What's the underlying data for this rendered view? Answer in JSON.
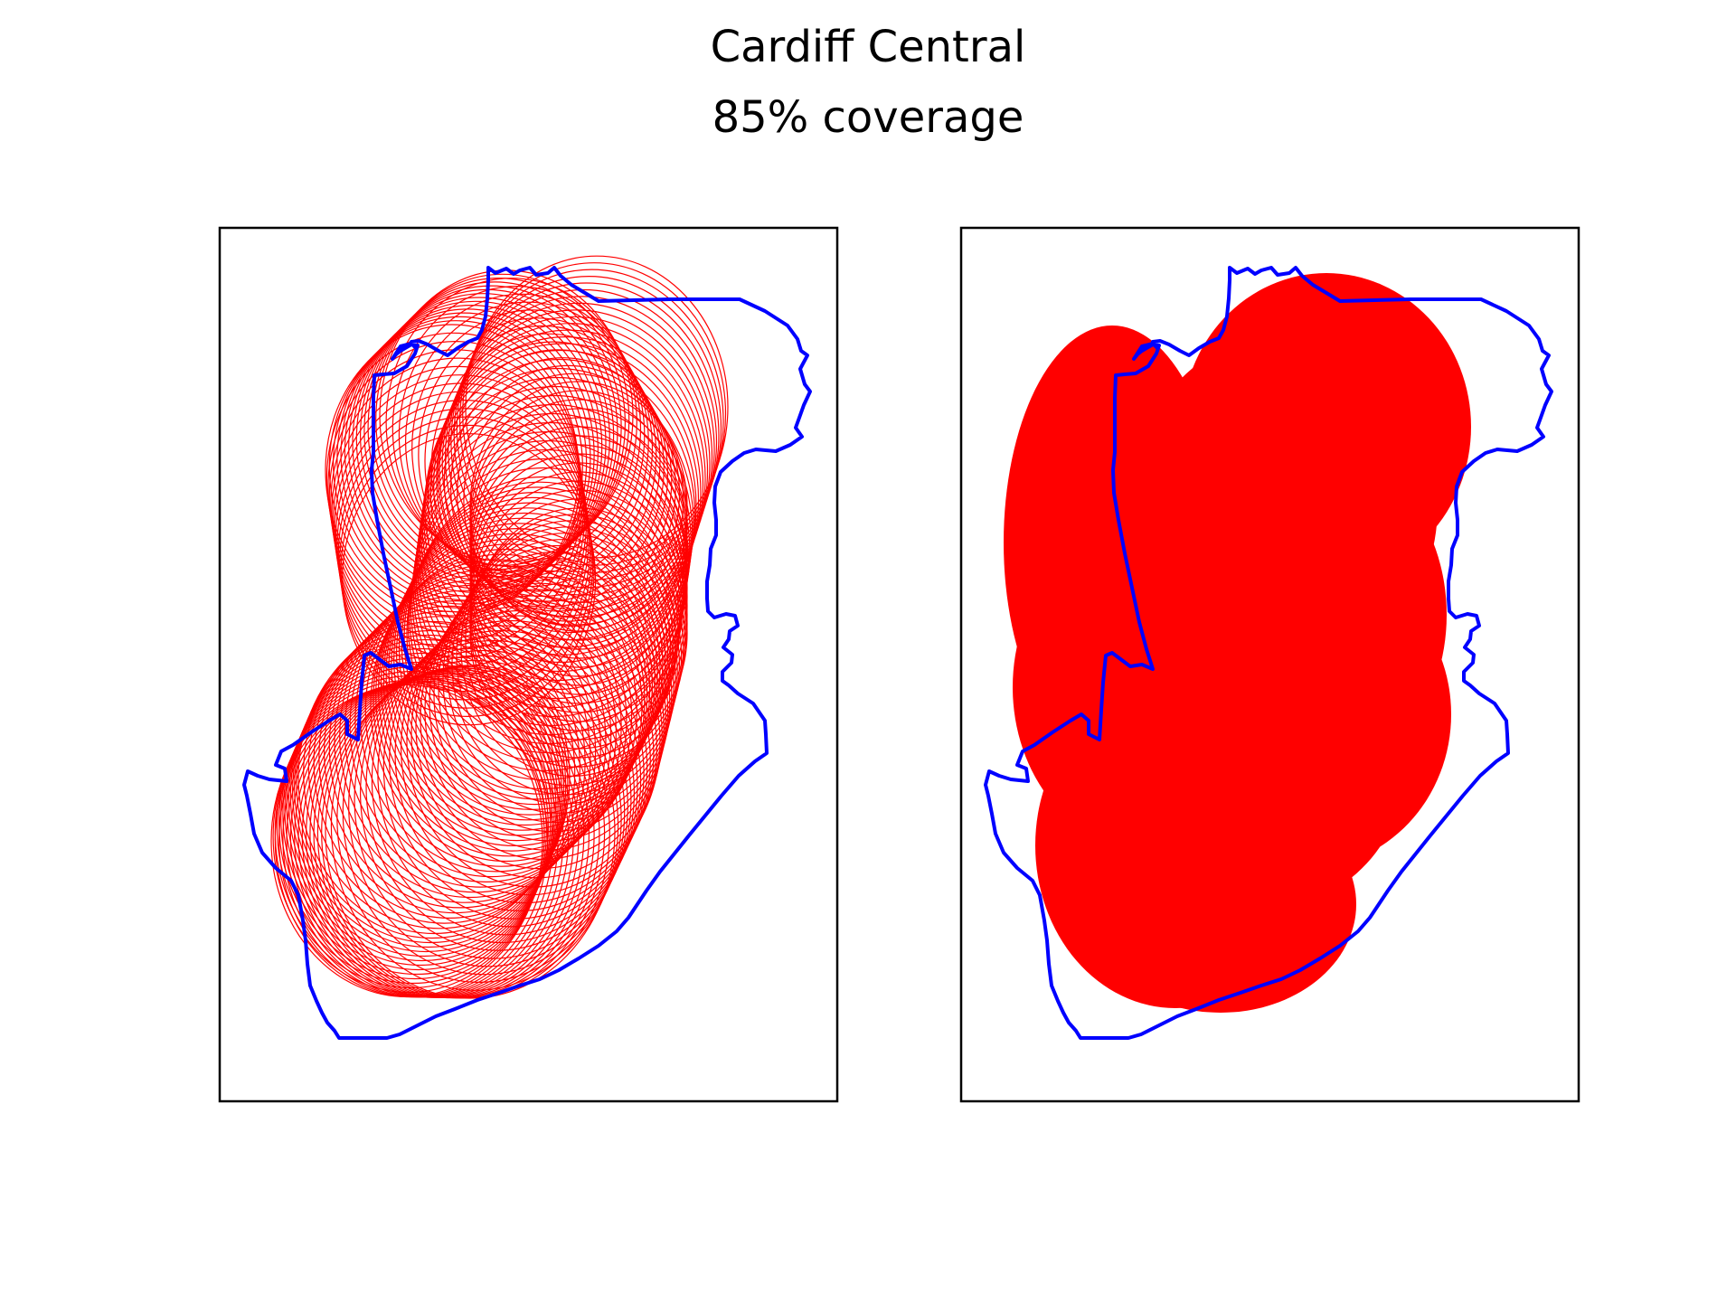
{
  "header": {
    "title": "Cardiff Central",
    "subtitle": "85% coverage"
  },
  "colors": {
    "boundary": "#0000ff",
    "coverage": "#ff0000",
    "frame": "#000000"
  },
  "chart_data": [
    {
      "type": "map",
      "panel": "left",
      "style": "circle-outlines",
      "title": "",
      "grid": false,
      "ticks": false,
      "series": [
        {
          "name": "",
          "kind": "boundary",
          "color": "#0000ff"
        },
        {
          "name": "",
          "kind": "coverage-circles",
          "color": "#ff0000"
        }
      ]
    },
    {
      "type": "map",
      "panel": "right",
      "style": "filled-union",
      "title": "",
      "grid": false,
      "ticks": false,
      "series": [
        {
          "name": "",
          "kind": "boundary",
          "color": "#0000ff"
        },
        {
          "name": "",
          "kind": "coverage-union",
          "color": "#ff0000"
        }
      ]
    }
  ]
}
